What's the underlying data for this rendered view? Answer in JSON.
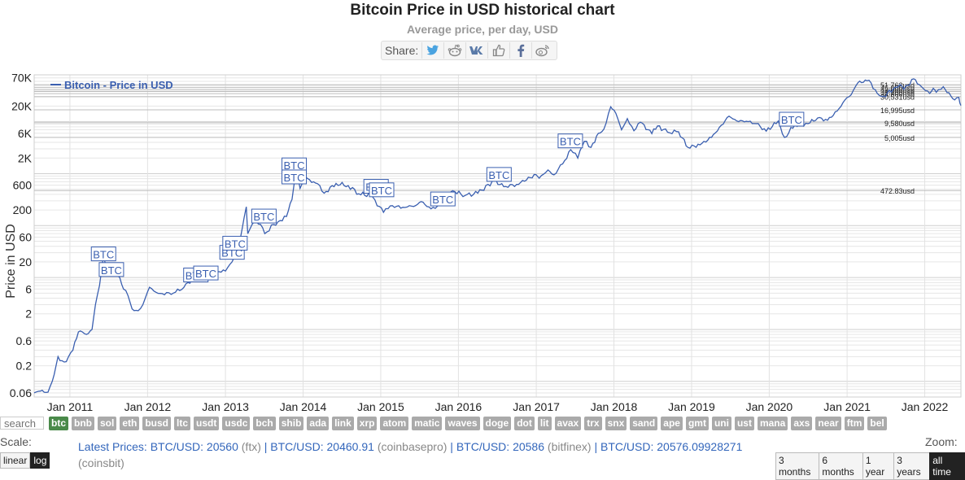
{
  "header": {
    "title": "Bitcoin Price in USD historical chart",
    "subtitle": "Average price, per day, USD"
  },
  "share": {
    "label": "Share:",
    "icons": [
      "twitter-icon",
      "reddit-icon",
      "vk-icon",
      "like-icon",
      "facebook-icon",
      "weibo-icon"
    ]
  },
  "chart_data": {
    "type": "line",
    "title": "Bitcoin Price in USD historical chart",
    "subtitle": "Average price, per day, USD",
    "ylabel": "Price in USD",
    "yscale": "log",
    "ylim": [
      0.05,
      80000
    ],
    "yticks": [
      {
        "v": 0.06,
        "label": "0.06"
      },
      {
        "v": 0.2,
        "label": "0.2"
      },
      {
        "v": 0.6,
        "label": "0.6"
      },
      {
        "v": 2,
        "label": "2"
      },
      {
        "v": 6,
        "label": "6"
      },
      {
        "v": 20,
        "label": "20"
      },
      {
        "v": 60,
        "label": "60"
      },
      {
        "v": 200,
        "label": "200"
      },
      {
        "v": 600,
        "label": "600"
      },
      {
        "v": 2000,
        "label": "2K"
      },
      {
        "v": 6000,
        "label": "6K"
      },
      {
        "v": 20000,
        "label": "20K"
      },
      {
        "v": 70000,
        "label": "70K"
      }
    ],
    "xlim": [
      "2010-07-17",
      "2022-06-20"
    ],
    "xticks": [
      {
        "v": "2011-01-01",
        "label": "Jan 2011"
      },
      {
        "v": "2012-01-01",
        "label": "Jan 2012"
      },
      {
        "v": "2013-01-01",
        "label": "Jan 2013"
      },
      {
        "v": "2014-01-01",
        "label": "Jan 2014"
      },
      {
        "v": "2015-01-01",
        "label": "Jan 2015"
      },
      {
        "v": "2016-01-01",
        "label": "Jan 2016"
      },
      {
        "v": "2017-01-01",
        "label": "Jan 2017"
      },
      {
        "v": "2018-01-01",
        "label": "Jan 2018"
      },
      {
        "v": "2019-01-01",
        "label": "Jan 2019"
      },
      {
        "v": "2020-01-01",
        "label": "Jan 2020"
      },
      {
        "v": "2021-01-01",
        "label": "Jan 2021"
      },
      {
        "v": "2022-01-01",
        "label": "Jan 2022"
      }
    ],
    "grid": true,
    "legend_position": "top-left",
    "color": "#3a5fb0",
    "series": [
      {
        "name": "Bitcoin - Price in USD",
        "points": [
          [
            "2010-07-17",
            0.06
          ],
          [
            "2010-08-15",
            0.065
          ],
          [
            "2010-09-20",
            0.062
          ],
          [
            "2010-10-10",
            0.1
          ],
          [
            "2010-11-06",
            0.3
          ],
          [
            "2010-11-25",
            0.25
          ],
          [
            "2010-12-15",
            0.24
          ],
          [
            "2011-01-15",
            0.4
          ],
          [
            "2011-02-10",
            0.9
          ],
          [
            "2011-02-28",
            0.9
          ],
          [
            "2011-03-20",
            0.8
          ],
          [
            "2011-04-15",
            1.0
          ],
          [
            "2011-05-01",
            3.0
          ],
          [
            "2011-05-20",
            7.0
          ],
          [
            "2011-06-08",
            28
          ],
          [
            "2011-06-20",
            17
          ],
          [
            "2011-07-15",
            14
          ],
          [
            "2011-08-15",
            11
          ],
          [
            "2011-09-10",
            6
          ],
          [
            "2011-10-01",
            4.5
          ],
          [
            "2011-10-20",
            2.5
          ],
          [
            "2011-11-18",
            2.3
          ],
          [
            "2011-12-10",
            3.0
          ],
          [
            "2012-01-10",
            6.5
          ],
          [
            "2012-02-10",
            5.2
          ],
          [
            "2012-03-10",
            4.9
          ],
          [
            "2012-05-01",
            5.0
          ],
          [
            "2012-06-20",
            6.5
          ],
          [
            "2012-08-15",
            11
          ],
          [
            "2012-09-01",
            10
          ],
          [
            "2012-10-01",
            12
          ],
          [
            "2012-11-01",
            11
          ],
          [
            "2012-12-01",
            13
          ],
          [
            "2013-01-01",
            13.3
          ],
          [
            "2013-02-01",
            20
          ],
          [
            "2013-03-01",
            33
          ],
          [
            "2013-04-09",
            230
          ],
          [
            "2013-04-16",
            70
          ],
          [
            "2013-05-15",
            118
          ],
          [
            "2013-06-15",
            105
          ],
          [
            "2013-07-05",
            70
          ],
          [
            "2013-08-15",
            105
          ],
          [
            "2013-09-15",
            125
          ],
          [
            "2013-10-15",
            150
          ],
          [
            "2013-11-10",
            320
          ],
          [
            "2013-11-30",
            1150
          ],
          [
            "2013-12-18",
            520
          ],
          [
            "2014-01-10",
            900
          ],
          [
            "2014-02-10",
            680
          ],
          [
            "2014-03-10",
            640
          ],
          [
            "2014-04-10",
            420
          ],
          [
            "2014-06-05",
            650
          ],
          [
            "2014-08-01",
            590
          ],
          [
            "2014-09-20",
            410
          ],
          [
            "2014-11-15",
            380
          ],
          [
            "2015-01-14",
            180
          ],
          [
            "2015-02-15",
            240
          ],
          [
            "2015-04-15",
            225
          ],
          [
            "2015-06-15",
            245
          ],
          [
            "2015-07-10",
            290
          ],
          [
            "2015-08-25",
            210
          ],
          [
            "2015-10-15",
            255
          ],
          [
            "2015-11-04",
            410
          ],
          [
            "2015-12-15",
            450
          ],
          [
            "2016-02-01",
            380
          ],
          [
            "2016-04-01",
            420
          ],
          [
            "2016-06-17",
            740
          ],
          [
            "2016-08-01",
            560
          ],
          [
            "2016-10-01",
            620
          ],
          [
            "2016-12-31",
            960
          ],
          [
            "2017-01-15",
            820
          ],
          [
            "2017-02-25",
            1180
          ],
          [
            "2017-03-25",
            950
          ],
          [
            "2017-05-15",
            1800
          ],
          [
            "2017-06-12",
            2900
          ],
          [
            "2017-07-15",
            2000
          ],
          [
            "2017-08-15",
            4200
          ],
          [
            "2017-09-15",
            3200
          ],
          [
            "2017-10-20",
            6000
          ],
          [
            "2017-11-15",
            7200
          ],
          [
            "2017-12-17",
            19400
          ],
          [
            "2018-01-10",
            14500
          ],
          [
            "2018-02-06",
            7000
          ],
          [
            "2018-03-05",
            11500
          ],
          [
            "2018-04-05",
            6700
          ],
          [
            "2018-05-05",
            9800
          ],
          [
            "2018-06-28",
            5900
          ],
          [
            "2018-07-25",
            8300
          ],
          [
            "2018-09-10",
            6300
          ],
          [
            "2018-11-01",
            6400
          ],
          [
            "2018-12-15",
            3200
          ],
          [
            "2019-02-10",
            3600
          ],
          [
            "2019-04-05",
            5000
          ],
          [
            "2019-06-26",
            12800
          ],
          [
            "2019-08-01",
            10400
          ],
          [
            "2019-09-15",
            10200
          ],
          [
            "2019-11-01",
            9200
          ],
          [
            "2019-12-18",
            6600
          ],
          [
            "2020-02-12",
            10300
          ],
          [
            "2020-03-13",
            5000
          ],
          [
            "2020-05-01",
            8800
          ],
          [
            "2020-07-01",
            9200
          ],
          [
            "2020-08-15",
            11800
          ],
          [
            "2020-10-01",
            10700
          ],
          [
            "2020-11-15",
            16000
          ],
          [
            "2020-12-31",
            29000
          ],
          [
            "2021-01-20",
            33000
          ],
          [
            "2021-02-20",
            56000
          ],
          [
            "2021-04-14",
            63000
          ],
          [
            "2021-05-23",
            35000
          ],
          [
            "2021-06-22",
            31000
          ],
          [
            "2021-08-15",
            46000
          ],
          [
            "2021-09-07",
            52000
          ],
          [
            "2021-09-25",
            42000
          ],
          [
            "2021-11-10",
            67000
          ],
          [
            "2021-12-15",
            48000
          ],
          [
            "2022-01-24",
            35000
          ],
          [
            "2022-02-10",
            44000
          ],
          [
            "2022-02-24",
            37000
          ],
          [
            "2022-03-29",
            47500
          ],
          [
            "2022-05-12",
            28000
          ],
          [
            "2022-06-10",
            29500
          ],
          [
            "2022-06-20",
            20500
          ]
        ]
      }
    ],
    "markers": [
      {
        "x": "2011-06-08",
        "y": 28,
        "label": "BTC"
      },
      {
        "x": "2011-07-15",
        "y": 14,
        "label": "BTC"
      },
      {
        "x": "2012-08-15",
        "y": 11,
        "label": "BTC"
      },
      {
        "x": "2012-10-01",
        "y": 12,
        "label": "BTC"
      },
      {
        "x": "2013-02-01",
        "y": 30,
        "label": "BTC"
      },
      {
        "x": "2013-02-15",
        "y": 45,
        "label": "BTC"
      },
      {
        "x": "2013-07-01",
        "y": 150,
        "label": "BTC"
      },
      {
        "x": "2013-11-20",
        "y": 1450,
        "label": "BTC"
      },
      {
        "x": "2013-11-20",
        "y": 850,
        "label": "BTC"
      },
      {
        "x": "2014-12-10",
        "y": 560,
        "label": "BTC"
      },
      {
        "x": "2015-01-05",
        "y": 480,
        "label": "BTC"
      },
      {
        "x": "2015-10-20",
        "y": 320,
        "label": "BTC"
      },
      {
        "x": "2016-07-10",
        "y": 950,
        "label": "BTC"
      },
      {
        "x": "2017-06-10",
        "y": 4200,
        "label": "BTC"
      },
      {
        "x": "2020-04-15",
        "y": 11000,
        "label": "BTC"
      }
    ],
    "price_levels": [
      {
        "v": 51762,
        "label": "51,762usd"
      },
      {
        "v": 46000,
        "label": "46,000usd"
      },
      {
        "v": 42000,
        "label": "42,000usd"
      },
      {
        "v": 38200,
        "label": "38,200usd"
      },
      {
        "v": 34800,
        "label": "34,800usd"
      },
      {
        "v": 30531,
        "label": "30,531usd"
      },
      {
        "v": 16995,
        "label": "16,995usd"
      },
      {
        "v": 9580,
        "label": "9,580usd"
      },
      {
        "v": 5005,
        "label": "5,005usd"
      },
      {
        "v": 472.83,
        "label": "472.83usd"
      }
    ]
  },
  "coins": {
    "search_placeholder": "search",
    "items": [
      "btc",
      "bnb",
      "sol",
      "eth",
      "busd",
      "ltc",
      "usdt",
      "usdc",
      "bch",
      "shib",
      "ada",
      "link",
      "xrp",
      "atom",
      "matic",
      "waves",
      "doge",
      "dot",
      "lit",
      "avax",
      "trx",
      "snx",
      "sand",
      "ape",
      "gmt",
      "uni",
      "ust",
      "mana",
      "axs",
      "near",
      "ftm",
      "bel"
    ],
    "active": "btc"
  },
  "scale": {
    "label": "Scale:",
    "options": [
      "linear",
      "log"
    ],
    "active": "log"
  },
  "prices": {
    "lead": "Latest Prices:",
    "entries": [
      {
        "pair": "BTC/USD: 20560",
        "exchange": "(ftx)"
      },
      {
        "pair": "BTC/USD: 20460.91",
        "exchange": "(coinbasepro)"
      },
      {
        "pair": "BTC/USD: 20586",
        "exchange": "(bitfinex)"
      },
      {
        "pair": "BTC/USD: 20576.09928271",
        "exchange": "(coinsbit)"
      }
    ]
  },
  "zoom": {
    "label": "Zoom:",
    "options": [
      "3 months",
      "6 months",
      "1 year",
      "3 years",
      "all time"
    ],
    "active": "all time"
  }
}
